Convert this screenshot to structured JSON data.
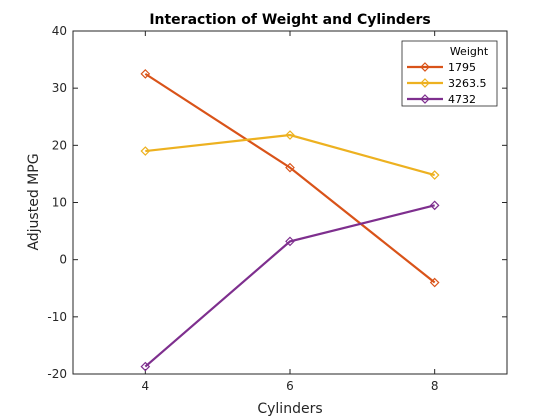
{
  "chart_data": {
    "type": "line",
    "title": "Interaction of Weight and Cylinders",
    "xlabel": "Cylinders",
    "ylabel": "Adjusted MPG",
    "x": [
      4,
      6,
      8
    ],
    "xlim": [
      3,
      9
    ],
    "ylim": [
      -20,
      40
    ],
    "xticks": [
      "4",
      "6",
      "8"
    ],
    "yticks": [
      "-20",
      "-10",
      "0",
      "10",
      "20",
      "30",
      "40"
    ],
    "grid": false,
    "legend": {
      "title": "Weight",
      "placement": "top-right"
    },
    "series": [
      {
        "name": "1795",
        "values": [
          32.5,
          16.1,
          -4.0
        ],
        "color": "#D95319",
        "marker": "diamond"
      },
      {
        "name": "3263.5",
        "values": [
          19.0,
          21.8,
          14.8
        ],
        "color": "#EDB120",
        "marker": "diamond"
      },
      {
        "name": "4732",
        "values": [
          -18.7,
          3.2,
          9.5
        ],
        "color": "#7E2F8E",
        "marker": "diamond"
      }
    ]
  }
}
